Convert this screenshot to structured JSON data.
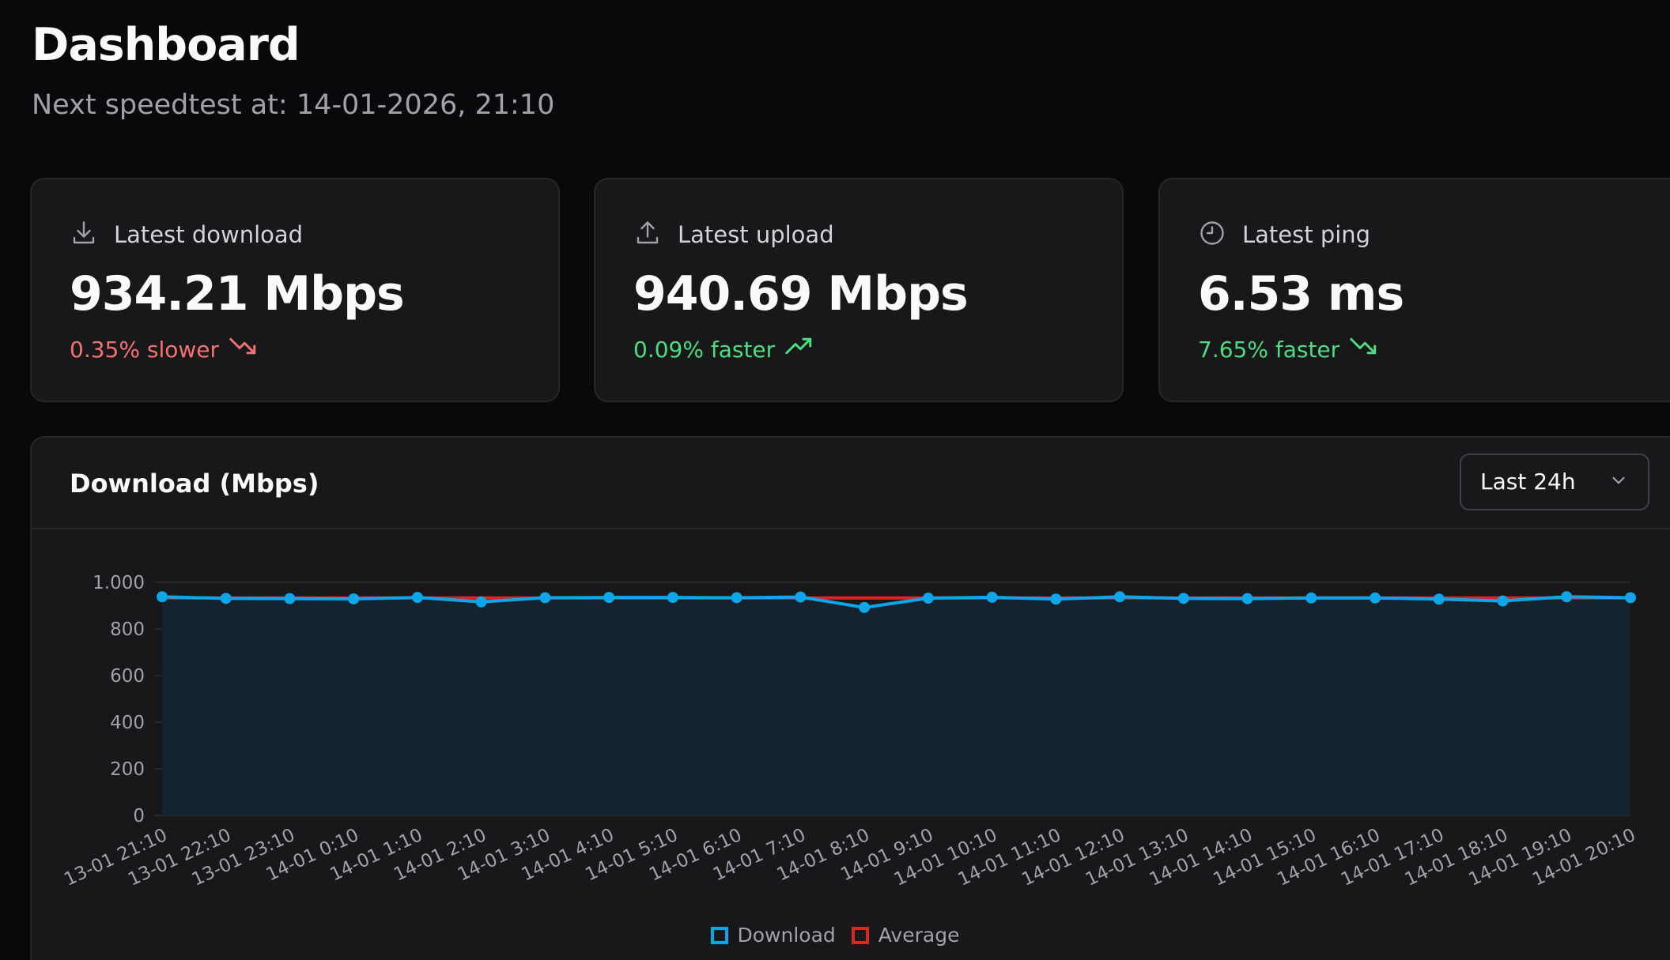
{
  "header": {
    "title": "Dashboard",
    "subtitle": "Next speedtest at: 14-01-2026, 21:10"
  },
  "stats": [
    {
      "label": "Latest download",
      "value": "934.21 Mbps",
      "delta": "0.35% slower",
      "icon": "download-icon",
      "trend": "down",
      "color": "#f87171"
    },
    {
      "label": "Latest upload",
      "value": "940.69 Mbps",
      "delta": "0.09% faster",
      "icon": "upload-icon",
      "trend": "up",
      "color": "#4ade80"
    },
    {
      "label": "Latest ping",
      "value": "6.53 ms",
      "delta": "7.65% faster",
      "icon": "clock-icon",
      "trend": "down",
      "color": "#4ade80"
    }
  ],
  "chart_card": {
    "title": "Download (Mbps)",
    "range_selected": "Last 24h"
  },
  "chart_data": {
    "type": "line",
    "x": [
      "13-01 21:10",
      "13-01 22:10",
      "13-01 23:10",
      "14-01 0:10",
      "14-01 1:10",
      "14-01 2:10",
      "14-01 3:10",
      "14-01 4:10",
      "14-01 5:10",
      "14-01 6:10",
      "14-01 7:10",
      "14-01 8:10",
      "14-01 9:10",
      "14-01 10:10",
      "14-01 11:10",
      "14-01 12:10",
      "14-01 13:10",
      "14-01 14:10",
      "14-01 15:10",
      "14-01 16:10",
      "14-01 17:10",
      "14-01 18:10",
      "14-01 19:10",
      "14-01 20:10"
    ],
    "series": [
      {
        "name": "Download",
        "color": "#0ea5e9",
        "fill": "#14232e",
        "values": [
          938,
          931,
          930,
          929,
          935,
          916,
          934,
          935,
          935,
          934,
          937,
          892,
          932,
          936,
          928,
          938,
          931,
          930,
          933,
          933,
          928,
          920,
          938,
          934
        ]
      },
      {
        "name": "Average",
        "color": "#dc2626",
        "values": [
          933,
          933,
          933,
          933,
          933,
          933,
          933,
          933,
          933,
          933,
          933,
          933,
          933,
          933,
          933,
          933,
          933,
          933,
          933,
          933,
          933,
          933,
          933,
          933
        ]
      }
    ],
    "ylim": [
      0,
      1000
    ],
    "yticks": [
      0,
      200,
      400,
      600,
      800,
      1000
    ],
    "ytick_labels": [
      "0",
      "200",
      "400",
      "600",
      "800",
      "1.000"
    ],
    "grid": true,
    "legend": "bottom-center"
  },
  "legend": {
    "download": "Download",
    "average": "Average",
    "download_color": "#0ea5e9",
    "average_color": "#dc2626"
  }
}
